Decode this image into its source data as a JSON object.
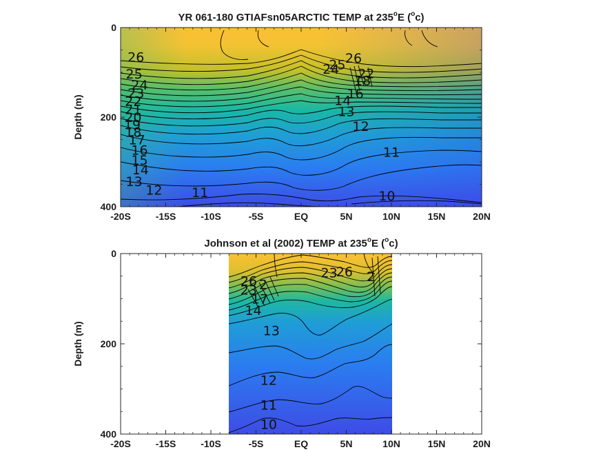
{
  "colors": {
    "warm": "#fcc034",
    "mid": "#19b7a6",
    "cool": "#3d4de3",
    "contour": "#000000"
  },
  "chart_data": [
    {
      "type": "contour",
      "title_main": "YR 061-180 GTIAFsn05ARCTIC TEMP at 235",
      "title_unit_open": "E (",
      "title_unit_close": "c)",
      "title_sup": "o",
      "ylabel": "Depth (m)",
      "xlabel": "",
      "x_ticks": [
        "-20S",
        "-15S",
        "-10S",
        "-5S",
        "EQ",
        "5N",
        "10N",
        "15N",
        "20N"
      ],
      "y_ticks": [
        "0",
        "200",
        "400"
      ],
      "xlim": [
        -20,
        20
      ],
      "ylim": [
        0,
        400
      ],
      "data_extent_lat": [
        -20,
        20
      ],
      "contour_levels": [
        10,
        11,
        12,
        13,
        14,
        15,
        16,
        17,
        18,
        19,
        20,
        21,
        22,
        23,
        24,
        25,
        26
      ],
      "contour_labels": [
        {
          "text": "26",
          "lat": -18.3,
          "depth": 65
        },
        {
          "text": "25",
          "lat": -18.5,
          "depth": 103
        },
        {
          "text": "24",
          "lat": -17.9,
          "depth": 128
        },
        {
          "text": "23",
          "lat": -18.3,
          "depth": 146
        },
        {
          "text": "22",
          "lat": -18.6,
          "depth": 164
        },
        {
          "text": "21",
          "lat": -18.6,
          "depth": 182
        },
        {
          "text": "20",
          "lat": -18.6,
          "depth": 200
        },
        {
          "text": "19",
          "lat": -18.7,
          "depth": 216
        },
        {
          "text": "18",
          "lat": -18.6,
          "depth": 233
        },
        {
          "text": "17",
          "lat": -18.2,
          "depth": 250
        },
        {
          "text": "16",
          "lat": -17.9,
          "depth": 273
        },
        {
          "text": "15",
          "lat": -17.9,
          "depth": 295
        },
        {
          "text": "14",
          "lat": -17.8,
          "depth": 317
        },
        {
          "text": "13",
          "lat": -18.5,
          "depth": 343
        },
        {
          "text": "12",
          "lat": -16.3,
          "depth": 362
        },
        {
          "text": "11",
          "lat": -11.2,
          "depth": 368
        },
        {
          "text": "26",
          "lat": 5.8,
          "depth": 68
        },
        {
          "text": "25",
          "lat": 4.0,
          "depth": 82
        },
        {
          "text": "24",
          "lat": 3.3,
          "depth": 92
        },
        {
          "text": "22",
          "lat": 7.2,
          "depth": 102
        },
        {
          "text": "18",
          "lat": 6.8,
          "depth": 118
        },
        {
          "text": "16",
          "lat": 6.0,
          "depth": 147
        },
        {
          "text": "14",
          "lat": 4.6,
          "depth": 162
        },
        {
          "text": "13",
          "lat": 5.0,
          "depth": 187
        },
        {
          "text": "12",
          "lat": 6.6,
          "depth": 220
        },
        {
          "text": "11",
          "lat": 10.0,
          "depth": 278
        },
        {
          "text": "10",
          "lat": 9.5,
          "depth": 375
        }
      ]
    },
    {
      "type": "contour",
      "title_main": "Johnson et al (2002) TEMP at 235",
      "title_unit_open": "E (",
      "title_unit_close": "c)",
      "title_sup": "o",
      "ylabel": "Depth (m)",
      "xlabel": "",
      "x_ticks": [
        "-20S",
        "-15S",
        "-10S",
        "-5S",
        "EQ",
        "5N",
        "10N",
        "15N",
        "20N"
      ],
      "y_ticks": [
        "0",
        "200",
        "400"
      ],
      "xlim": [
        -20,
        20
      ],
      "ylim": [
        0,
        400
      ],
      "data_extent_lat": [
        -8,
        10
      ],
      "contour_levels": [
        10,
        11,
        12,
        13,
        14,
        15,
        16,
        17,
        18,
        19,
        20,
        21,
        22,
        23,
        24,
        25,
        26
      ],
      "contour_labels": [
        {
          "text": "26",
          "lat": -5.8,
          "depth": 60
        },
        {
          "text": "23",
          "lat": -5.8,
          "depth": 80
        },
        {
          "text": "2",
          "lat": -4.2,
          "depth": 68
        },
        {
          "text": "17",
          "lat": -4.6,
          "depth": 100
        },
        {
          "text": "14",
          "lat": -5.3,
          "depth": 125
        },
        {
          "text": "13",
          "lat": -3.3,
          "depth": 170
        },
        {
          "text": "23",
          "lat": 3.1,
          "depth": 42
        },
        {
          "text": "26",
          "lat": 4.8,
          "depth": 40
        },
        {
          "text": "2",
          "lat": 7.7,
          "depth": 50
        },
        {
          "text": "12",
          "lat": -3.6,
          "depth": 280
        },
        {
          "text": "11",
          "lat": -3.6,
          "depth": 335
        },
        {
          "text": "10",
          "lat": -3.6,
          "depth": 378
        }
      ]
    }
  ]
}
